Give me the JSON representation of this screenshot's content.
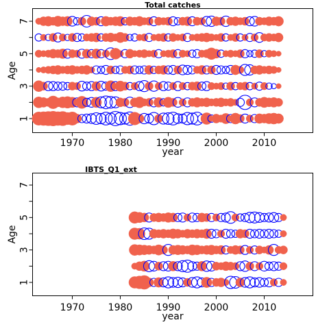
{
  "chart_data": [
    {
      "type": "scatter",
      "title": "Total catches",
      "xlabel": "year",
      "ylabel": "Age",
      "xlim": [
        1962,
        2015
      ],
      "ylim": [
        0.5,
        7.5
      ],
      "x_ticks": [
        1970,
        1980,
        1990,
        2000,
        2010
      ],
      "y_ticks": [
        1,
        2,
        3,
        4,
        5,
        6,
        7
      ],
      "y_tick_labels": [
        "1",
        "",
        "3",
        "",
        "5",
        "",
        "7"
      ],
      "years": [
        1963,
        2013
      ],
      "ages": [
        1,
        2,
        3,
        4,
        5,
        6,
        7
      ],
      "encoding": {
        "positive": {
          "shape": "filled-circle",
          "color": "#f0624d"
        },
        "negative": {
          "shape": "open-circle",
          "color": "#0000ff"
        }
      },
      "residuals": {
        "1": [
          1.3,
          1.4,
          1.5,
          1.6,
          1.4,
          1.5,
          1.1,
          1.3,
          0.6,
          -0.5,
          -0.6,
          -0.7,
          -1.0,
          -0.8,
          -1.2,
          -0.9,
          -1.5,
          -1.1,
          -0.9,
          -1.3,
          1.2,
          0.6,
          -0.8,
          -0.6,
          -1.1,
          0.5,
          -0.9,
          -1.0,
          -1.2,
          -0.7,
          -0.6,
          -1.1,
          -0.9,
          -1.2,
          -0.5,
          1.0,
          -0.4,
          0.6,
          0.4,
          0.8,
          -0.5,
          0.9,
          0.5,
          -0.6,
          0.4,
          -0.5,
          0.7,
          0.6,
          0.8,
          0.9,
          0.7
        ],
        "2": [
          0.9,
          0.7,
          0.5,
          1.2,
          0.6,
          0.9,
          1.0,
          0.8,
          -0.6,
          1.1,
          -0.5,
          -0.7,
          0.8,
          -0.9,
          -1.2,
          -1.0,
          -0.9,
          0.6,
          0.5,
          -0.8,
          0.6,
          0.9,
          0.4,
          0.5,
          -0.6,
          0.7,
          -0.4,
          0.8,
          0.5,
          -0.7,
          0.4,
          -0.6,
          0.5,
          0.7,
          0.5,
          0.6,
          0.4,
          0.5,
          0.6,
          0.4,
          0.5,
          0.3,
          -0.5,
          -1.5,
          0.4,
          -0.6,
          0.5,
          0.8,
          0.6,
          0.7,
          0.5
        ],
        "3": [
          0.9,
          0.5,
          -0.6,
          -0.6,
          -0.5,
          -0.5,
          -0.4,
          0.5,
          0.4,
          -0.7,
          -0.5,
          -0.6,
          0.6,
          -0.7,
          -0.5,
          0.9,
          -0.6,
          0.8,
          0.5,
          -0.4,
          0.4,
          -0.6,
          -0.9,
          0.5,
          -0.8,
          0.4,
          -0.6,
          -0.5,
          0.4,
          -0.6,
          0.4,
          -0.4,
          0.5,
          0.6,
          -0.5,
          -0.6,
          0.4,
          0.3,
          0.4,
          -0.3,
          0.5,
          -0.4,
          0.4,
          0.5,
          -0.4,
          0.3,
          -0.5,
          0.4,
          -0.3,
          -0.2,
          0.2
        ],
        "4": [
          0.2,
          0.3,
          0.4,
          0.5,
          0.6,
          0.4,
          0.5,
          0.6,
          0.4,
          0.5,
          0.6,
          0.3,
          -0.5,
          -0.4,
          -0.6,
          0.5,
          -0.4,
          -0.5,
          0.4,
          0.5,
          -0.5,
          -0.4,
          -0.5,
          0.6,
          -0.4,
          0.5,
          0.6,
          -0.5,
          -0.6,
          0.5,
          -0.7,
          -0.6,
          -0.5,
          0.4,
          0.6,
          -0.5,
          0.5,
          -0.6,
          -0.5,
          -0.4,
          -0.6,
          0.7,
          0.4,
          -0.9,
          -0.8,
          0.5,
          0.6,
          0.4,
          0.5,
          0.4,
          0.2
        ],
        "5": [
          0.4,
          0.3,
          0.4,
          0.6,
          0.5,
          0.7,
          -0.6,
          0.5,
          0.4,
          -0.6,
          0.6,
          -0.5,
          0.7,
          -0.5,
          0.4,
          -1.0,
          0.9,
          0.3,
          -0.5,
          0.6,
          0.3,
          0.4,
          0.5,
          0.3,
          0.4,
          -0.5,
          0.3,
          0.4,
          0.5,
          -0.5,
          0.4,
          0.3,
          -0.4,
          -0.5,
          0.4,
          0.5,
          1.0,
          0.6,
          -0.4,
          0.3,
          0.4,
          0.3,
          0.5,
          -0.5,
          -0.3,
          -0.4,
          0.5,
          -0.3,
          0.4,
          0.3,
          0.2
        ],
        "6": [
          -0.4,
          0.3,
          -0.3,
          0.5,
          -0.6,
          0.4,
          -0.3,
          0.5,
          -0.5,
          -0.4,
          0.4,
          0.5,
          0.6,
          -0.4,
          0.5,
          0.6,
          0.4,
          0.8,
          0.5,
          -0.3,
          -0.4,
          0.3,
          0.4,
          -0.5,
          0.3,
          0.4,
          0.5,
          -0.4,
          0.5,
          0.3,
          0.4,
          -0.5,
          0.3,
          0.4,
          0.5,
          0.6,
          0.4,
          0.3,
          0.5,
          -0.4,
          0.3,
          0.5,
          -0.4,
          0.3,
          -0.5,
          0.4,
          -0.7,
          0.4,
          0.5,
          0.4,
          0.6
        ],
        "7": [
          0.3,
          0.6,
          0.7,
          0.5,
          0.8,
          0.6,
          0.7,
          -0.7,
          -0.4,
          0.5,
          -1.0,
          0.6,
          0.5,
          -0.6,
          0.7,
          0.5,
          0.6,
          0.7,
          -0.4,
          0.6,
          0.5,
          0.7,
          0.4,
          0.5,
          -0.6,
          0.5,
          0.4,
          0.5,
          -0.6,
          -0.4,
          0.5,
          0.6,
          -0.6,
          0.5,
          0.4,
          -0.7,
          -0.8,
          0.6,
          0.5,
          -0.8,
          0.5,
          0.6,
          0.4,
          0.5,
          -0.6,
          -0.7,
          0.5,
          0.4,
          0.6,
          0.5,
          0.7
        ]
      }
    },
    {
      "type": "scatter",
      "title": "IBTS_Q1_ext",
      "xlabel": "year",
      "ylabel": "Age",
      "xlim": [
        1962,
        2015
      ],
      "ylim": [
        0.5,
        7.5
      ],
      "x_ticks": [
        1970,
        1980,
        1990,
        2000,
        2010
      ],
      "y_ticks": [
        1,
        2,
        3,
        4,
        5,
        6,
        7
      ],
      "y_tick_labels": [
        "1",
        "",
        "3",
        "",
        "5",
        "",
        "7"
      ],
      "years": [
        1983,
        2014
      ],
      "ages": [
        1,
        2,
        3,
        4,
        5
      ],
      "encoding": {
        "positive": {
          "shape": "filled-circle",
          "color": "#f0624d"
        },
        "negative": {
          "shape": "open-circle",
          "color": "#0000ff"
        }
      },
      "residuals": {
        "1": [
          1.0,
          1.2,
          1.4,
          0.6,
          -0.5,
          0.7,
          -0.6,
          -0.9,
          -0.7,
          -0.8,
          -0.6,
          0.5,
          -0.7,
          -0.9,
          -0.6,
          0.8,
          -0.5,
          0.5,
          0.6,
          0.3,
          -1.1,
          -1.0,
          0.6,
          -0.7,
          -0.9,
          -0.6,
          -0.7,
          -0.5,
          -0.6,
          0.4,
          -0.5,
          0.3
        ],
        "2": [
          0.3,
          0.6,
          0.8,
          -0.9,
          -0.7,
          0.5,
          -0.6,
          -0.7,
          0.7,
          -0.6,
          -0.9,
          -1.1,
          -0.6,
          -0.5,
          0.7,
          -0.8,
          -0.7,
          0.5,
          0.4,
          0.6,
          0.5,
          0.4,
          -0.6,
          -0.8,
          0.5,
          -0.6,
          0.4,
          -0.7,
          -0.5,
          -0.6,
          -0.5,
          0.4
        ],
        "3": [
          0.9,
          0.8,
          0.7,
          0.6,
          0.5,
          0.8,
          0.5,
          -0.9,
          0.6,
          0.7,
          0.6,
          0.5,
          0.8,
          0.7,
          0.5,
          0.6,
          0.7,
          0.5,
          0.6,
          -0.5,
          0.4,
          0.6,
          0.5,
          -0.6,
          0.4,
          -0.5,
          0.5,
          0.3,
          0.6,
          -0.9,
          0.4,
          0.5
        ],
        "4": [
          1.0,
          0.9,
          -1.0,
          -0.9,
          0.6,
          0.5,
          0.6,
          0.5,
          0.7,
          0.6,
          0.4,
          0.6,
          0.5,
          0.6,
          0.5,
          0.7,
          -0.6,
          -0.5,
          0.4,
          -0.6,
          -0.5,
          -0.4,
          0.6,
          0.5,
          -0.6,
          -0.5,
          -0.6,
          -0.5,
          -0.6,
          -0.5,
          -0.4,
          0.3
        ],
        "5": [
          1.0,
          0.8,
          0.6,
          -0.6,
          0.5,
          0.6,
          0.5,
          0.7,
          0.6,
          -0.5,
          -0.6,
          0.4,
          -0.6,
          -0.5,
          0.6,
          0.5,
          -0.5,
          0.4,
          -0.5,
          -0.6,
          -1.0,
          0.4,
          -0.4,
          -0.5,
          -0.8,
          -0.9,
          -0.7,
          -0.5,
          -0.6,
          -0.7,
          -0.5,
          0.3
        ]
      }
    }
  ]
}
